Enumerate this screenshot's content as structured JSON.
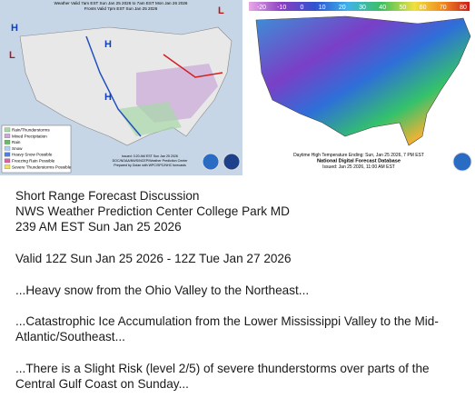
{
  "maps": {
    "left": {
      "header": [
        "Weather Valid 7am EST Sun Jan 25 2026 to 7am EST Mon Jan 26 2026",
        "Fronts Valid 7pm EST Sun Jan 25 2026"
      ],
      "legend": [
        "Rain/Thunderstorms",
        "Mixed Precipitation",
        "Rain",
        "Snow",
        "Heavy Snow Possible",
        "Freezing Rain Possible",
        "Severe Thunderstorms Possible"
      ],
      "credits": [
        "Issued: 3:20 AM EST Sun Jan 25 2026",
        "DOC/NOAA/NWS/NCEP/Weather Prediction Center",
        "Prepared by Dolan with WPC/SPC/NHC forecasts"
      ]
    },
    "right": {
      "scale": [
        -20,
        -10,
        0,
        10,
        20,
        30,
        40,
        50,
        60,
        70,
        80
      ],
      "caption": [
        "Daytime High Temperature Ending: Sun, Jan 25 2026, 7 PM EST",
        "National Digital Forecast Database",
        "Issued: Jan 25 2026, 11:00 AM EST"
      ]
    }
  },
  "discussion": {
    "heading": [
      "Short Range Forecast Discussion",
      "NWS Weather Prediction Center College Park MD",
      "239 AM EST Sun Jan 25 2026"
    ],
    "valid": "Valid 12Z Sun Jan 25 2026 - 12Z Tue Jan 27 2026",
    "paragraphs": [
      "...Heavy snow from the Ohio Valley to the Northeast...",
      "...Catastrophic Ice Accumulation from the Lower Mississippi Valley to the Mid-Atlantic/Southeast...",
      "...There is a Slight Risk (level 2/5) of severe thunderstorms over parts of the Central Gulf Coast on Sunday..."
    ]
  }
}
